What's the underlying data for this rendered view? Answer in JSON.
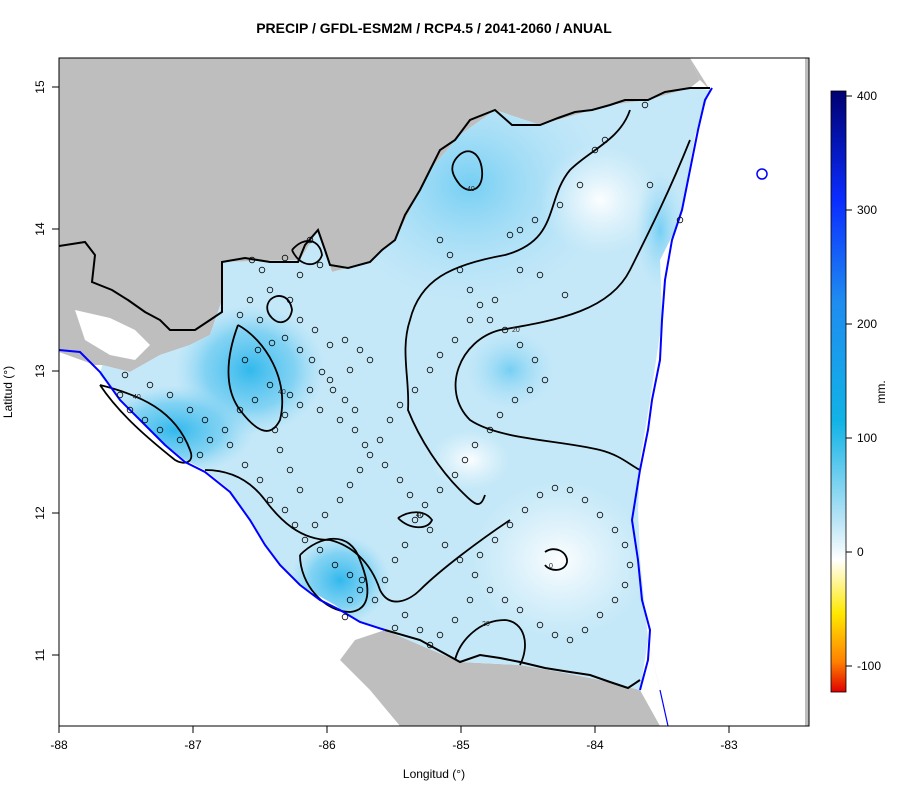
{
  "title": "PRECIP / GFDL-ESM2M / RCP4.5 / 2041-2060 / ANUAL",
  "x_axis": {
    "label": "Longitud (°)",
    "ticks": [
      "-88",
      "-87",
      "-86",
      "-85",
      "-84",
      "-83"
    ]
  },
  "y_axis": {
    "label": "Latitud (°)",
    "ticks": [
      "11",
      "12",
      "13",
      "14",
      "15"
    ]
  },
  "colorbar": {
    "label": "mm.",
    "ticks": [
      "400",
      "300",
      "200",
      "100",
      "0",
      "-100"
    ],
    "colors": {
      "high": "#000070",
      "mid_high": "#0a2cff",
      "mid": "#11b3e6",
      "low": "#bfe6f7",
      "zero": "#ffffff",
      "neg_low": "#ffe800",
      "neg_mid": "#ff8000",
      "neg_high": "#e00000"
    }
  },
  "contour_labels": [
    "40",
    "40",
    "20",
    "40",
    "40",
    "0",
    "20"
  ],
  "colors": {
    "sea_land": "#bebebe",
    "coastline": "#0000ff",
    "border": "#000000",
    "field_base": "#c4e8f8"
  }
}
